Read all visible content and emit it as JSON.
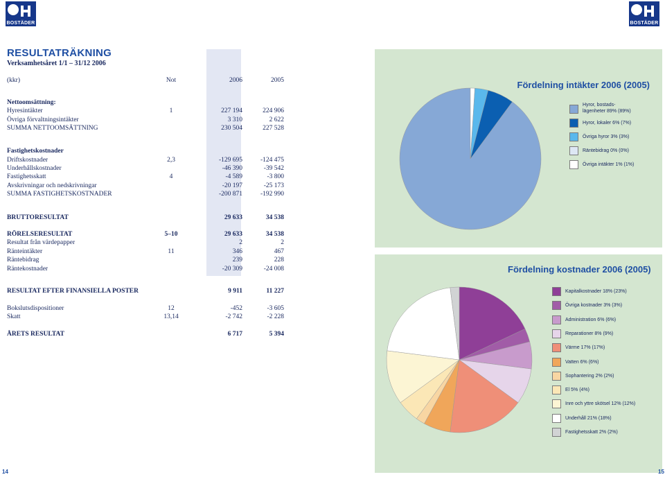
{
  "logo_text": "BOSTÄDER",
  "report": {
    "title": "RESULTATRÄKNING",
    "subtitle": "Verksamhetsåret 1/1 – 31/12 2006",
    "header": {
      "label": "(kkr)",
      "not": "Not",
      "y2006": "2006",
      "y2005": "2005"
    },
    "rows": [
      {
        "label": "Nettoomsättning:",
        "not": "",
        "v2006": "",
        "v2005": "",
        "bold": true
      },
      {
        "label": "Hyresintäkter",
        "not": "1",
        "v2006": "227 194",
        "v2005": "224 906",
        "bold": false
      },
      {
        "label": "Övriga förvaltningsintäkter",
        "not": "",
        "v2006": "3 310",
        "v2005": "2 622",
        "bold": false
      },
      {
        "label": "SUMMA NETTOOMSÄTTNING",
        "not": "",
        "v2006": "230 504",
        "v2005": "227 528",
        "bold": false
      },
      {
        "label": "Fastighetskostnader",
        "not": "",
        "v2006": "",
        "v2005": "",
        "bold": true
      },
      {
        "label": "Driftskostnader",
        "not": "2,3",
        "v2006": "-129 695",
        "v2005": "-124 475",
        "bold": false
      },
      {
        "label": "Underhållskostnader",
        "not": "",
        "v2006": "-46 390",
        "v2005": "-39 542",
        "bold": false
      },
      {
        "label": "Fastighetsskatt",
        "not": "4",
        "v2006": "-4 589",
        "v2005": "-3 800",
        "bold": false
      },
      {
        "label": "Avskrivningar och nedskrivningar",
        "not": "",
        "v2006": "-20 197",
        "v2005": "-25 173",
        "bold": false
      },
      {
        "label": "SUMMA FASTIGHETSKOSTNADER",
        "not": "",
        "v2006": "-200 871",
        "v2005": "-192 990",
        "bold": false
      },
      {
        "label": "BRUTTORESULTAT",
        "not": "",
        "v2006": "29 633",
        "v2005": "34 538",
        "bold": true
      },
      {
        "label": "RÖRELSERESULTAT",
        "not": "5–10",
        "v2006": "29 633",
        "v2005": "34 538",
        "bold": true
      },
      {
        "label": "Resultat från värdepapper",
        "not": "",
        "v2006": "2",
        "v2005": "2",
        "bold": false
      },
      {
        "label": "Ränteintäkter",
        "not": "11",
        "v2006": "346",
        "v2005": "467",
        "bold": false
      },
      {
        "label": "Räntebidrag",
        "not": "",
        "v2006": "239",
        "v2005": "228",
        "bold": false
      },
      {
        "label": "Räntekostnader",
        "not": "",
        "v2006": "-20 309",
        "v2005": "-24 008",
        "bold": false
      },
      {
        "label": "RESULTAT EFTER FINANSIELLA POSTER",
        "not": "",
        "v2006": "9 911",
        "v2005": "11 227",
        "bold": true
      },
      {
        "label": "Bokslutsdispositioner",
        "not": "12",
        "v2006": "-452",
        "v2005": "-3 605",
        "bold": false
      },
      {
        "label": "Skatt",
        "not": "13,14",
        "v2006": "-2 742",
        "v2005": "-2 228",
        "bold": false
      },
      {
        "label": "ÅRETS RESULTAT",
        "not": "",
        "v2006": "6 717",
        "v2005": "5 394",
        "bold": true
      }
    ]
  },
  "chart_data": [
    {
      "type": "pie",
      "title": "Fördelning intäkter 2006 (2005)",
      "categories": [
        "Hyror, bostads-lägenheter 89% (89%)",
        "Hyror, lokaler 6% (7%)",
        "Övriga hyror 3% (3%)",
        "Räntebidrag 0% (0%)",
        "Övriga intäkter 1% (1%)"
      ],
      "values": [
        89,
        6,
        3,
        0,
        1
      ],
      "values_2005": [
        89,
        7,
        3,
        0,
        1
      ],
      "colors": [
        "#86a8d6",
        "#0b5fb1",
        "#5ab8ec",
        "#dde7f4",
        "#ffffff"
      ],
      "legend": [
        {
          "line1": "Hyror, bostads-",
          "line2": "lägenheter 89% (89%)"
        },
        {
          "line1": "Hyror, lokaler 6% (7%)",
          "line2": ""
        },
        {
          "line1": "Övriga hyror 3% (3%)",
          "line2": ""
        },
        {
          "line1": "Räntebidrag 0% (0%)",
          "line2": ""
        },
        {
          "line1": "Övriga intäkter 1% (1%)",
          "line2": ""
        }
      ]
    },
    {
      "type": "pie",
      "title": "Fördelning kostnader 2006 (2005)",
      "categories": [
        "Kapitalkostnader 18% (23%)",
        "Övriga kostnader 3% (3%)",
        "Administration 6% (6%)",
        "Reparationer 8% (9%)",
        "Värme 17% (17%)",
        "Vatten 6% (6%)",
        "Sophantering 2% (2%)",
        "El 5% (4%)",
        "Inre och yttre skötsel 12% (12%)",
        "Underhåll 21% (18%)",
        "Fastighetsskatt 2% (2%)"
      ],
      "values": [
        18,
        3,
        6,
        8,
        17,
        6,
        2,
        5,
        12,
        21,
        2
      ],
      "values_2005": [
        23,
        3,
        6,
        9,
        17,
        6,
        2,
        4,
        12,
        18,
        2
      ],
      "colors": [
        "#8f3f97",
        "#a15ca7",
        "#c89bcc",
        "#e6d5ea",
        "#ef8f78",
        "#f0a65a",
        "#f8d6a3",
        "#fbe7b6",
        "#fcf5d4",
        "#ffffff",
        "#d1d3d4"
      ],
      "legend": [
        {
          "line1": "Kapitalkostnader 18% (23%)",
          "line2": ""
        },
        {
          "line1": "Övriga kostnader 3% (3%)",
          "line2": ""
        },
        {
          "line1": "Administration 6% (6%)",
          "line2": ""
        },
        {
          "line1": "Reparationer 8% (9%)",
          "line2": ""
        },
        {
          "line1": "Värme 17% (17%)",
          "line2": ""
        },
        {
          "line1": "Vatten 6% (6%)",
          "line2": ""
        },
        {
          "line1": "Sophantering 2% (2%)",
          "line2": ""
        },
        {
          "line1": "El 5% (4%)",
          "line2": ""
        },
        {
          "line1": "Inre och yttre skötsel 12% (12%)",
          "line2": ""
        },
        {
          "line1": "Underhåll 21% (18%)",
          "line2": ""
        },
        {
          "line1": "Fastighetsskatt 2% (2%)",
          "line2": ""
        }
      ]
    }
  ],
  "page_numbers": {
    "left": "14",
    "right": "15"
  }
}
